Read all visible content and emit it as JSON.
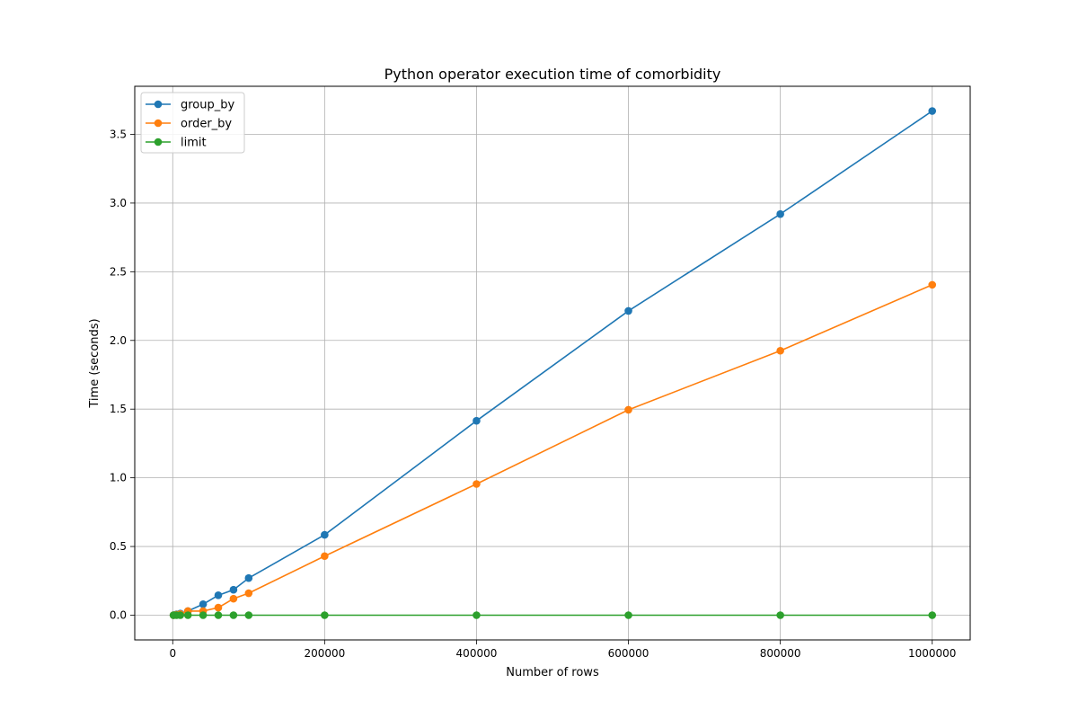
{
  "chart_data": {
    "type": "line",
    "title": "Python operator execution time of comorbidity",
    "xlabel": "Number of rows",
    "ylabel": "Time (seconds)",
    "xlim": [
      -50000,
      1050000
    ],
    "ylim": [
      -0.18,
      3.85
    ],
    "xticks": [
      0,
      200000,
      400000,
      600000,
      800000,
      1000000
    ],
    "yticks": [
      0.0,
      0.5,
      1.0,
      1.5,
      2.0,
      2.5,
      3.0,
      3.5
    ],
    "xtick_labels": [
      "0",
      "200000",
      "400000",
      "600000",
      "800000",
      "1000000"
    ],
    "ytick_labels": [
      "0.0",
      "0.5",
      "1.0",
      "1.5",
      "2.0",
      "2.5",
      "3.0",
      "3.5"
    ],
    "grid": true,
    "legend_position": "top-left",
    "x": [
      1000,
      5000,
      10000,
      20000,
      40000,
      60000,
      80000,
      100000,
      200000,
      400000,
      600000,
      800000,
      1000000
    ],
    "series": [
      {
        "name": "group_by",
        "color": "#1f77b4",
        "values": [
          0.0,
          0.006,
          0.012,
          0.03,
          0.08,
          0.145,
          0.185,
          0.27,
          0.585,
          1.415,
          2.215,
          2.92,
          3.67
        ]
      },
      {
        "name": "order_by",
        "color": "#ff7f0e",
        "values": [
          0.0,
          0.004,
          0.008,
          0.03,
          0.03,
          0.055,
          0.12,
          0.16,
          0.43,
          0.955,
          1.495,
          1.925,
          2.405
        ]
      },
      {
        "name": "limit",
        "color": "#2ca02c",
        "values": [
          0.0,
          0.0,
          0.0,
          0.0,
          0.0,
          0.0,
          0.0,
          0.0,
          0.0,
          0.0,
          0.0,
          0.0,
          0.0
        ]
      }
    ]
  }
}
